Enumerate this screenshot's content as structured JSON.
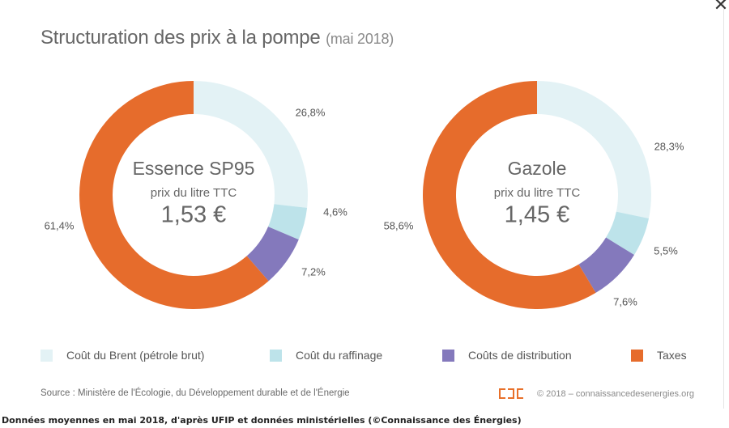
{
  "window": {
    "close_glyph": "✕"
  },
  "title": "Structuration des prix à la pompe",
  "subtitle": "(mai 2018)",
  "chart_data": [
    {
      "type": "pie",
      "variant": "donut",
      "center_title": "Essence SP95",
      "center_subtitle": "prix du litre TTC",
      "center_value": "1,53 €",
      "categories": [
        "Coût du Brent (pétrole brut)",
        "Coût du raffinage",
        "Coûts de distribution",
        "Taxes"
      ],
      "values": [
        26.8,
        4.6,
        7.2,
        61.4
      ],
      "labels": [
        "26,8%",
        "4,6%",
        "7,2%",
        "61,4%"
      ]
    },
    {
      "type": "pie",
      "variant": "donut",
      "center_title": "Gazole",
      "center_subtitle": "prix du litre TTC",
      "center_value": "1,45 €",
      "categories": [
        "Coût du Brent (pétrole brut)",
        "Coût du raffinage",
        "Coûts de distribution",
        "Taxes"
      ],
      "values": [
        28.3,
        5.5,
        7.6,
        58.6
      ],
      "labels": [
        "28,3%",
        "5,5%",
        "7,6%",
        "58,6%"
      ]
    }
  ],
  "legend": [
    {
      "label": "Coût du Brent (pétrole brut)",
      "color": "#e3f2f5"
    },
    {
      "label": "Coût du raffinage",
      "color": "#bde3ea"
    },
    {
      "label": "Coûts de distribution",
      "color": "#8479bc"
    },
    {
      "label": "Taxes",
      "color": "#e66c2c"
    }
  ],
  "source": "Source : Ministère de l'Écologie, du Développement durable et de l'Énergie",
  "copyright": "© 2018 – connaissancedesenergies.org",
  "caption": "Données moyennes en mai 2018, d'après UFIP et données ministérielles (©Connaissance des Énergies)"
}
